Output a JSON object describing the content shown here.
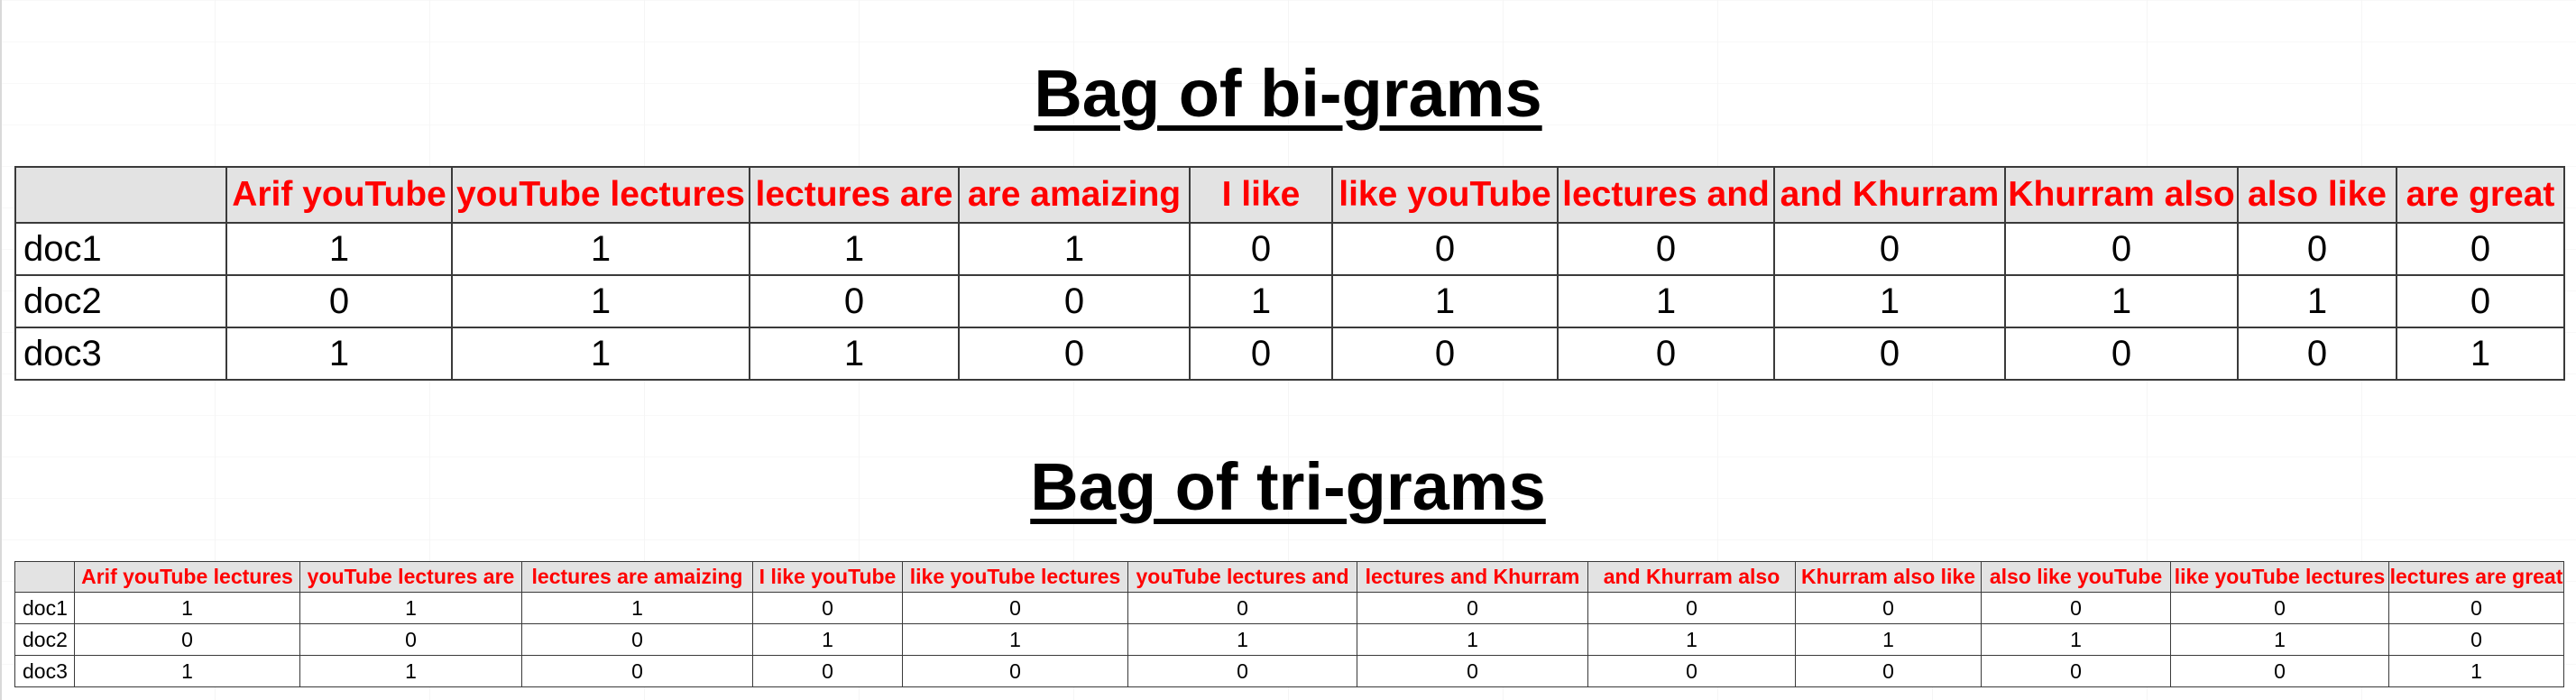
{
  "bigrams": {
    "title": "Bag of bi-grams",
    "headers": [
      "",
      "Arif youTube",
      "youTube lectures",
      "lectures are",
      "are amaizing",
      "I like",
      "like youTube",
      "lectures and",
      "and Khurram",
      "Khurram also",
      "also like",
      "are great"
    ],
    "rows": [
      {
        "doc": "doc1",
        "values": [
          "1",
          "1",
          "1",
          "1",
          "0",
          "0",
          "0",
          "0",
          "0",
          "0",
          "0"
        ]
      },
      {
        "doc": "doc2",
        "values": [
          "0",
          "1",
          "0",
          "0",
          "1",
          "1",
          "1",
          "1",
          "1",
          "1",
          "0"
        ]
      },
      {
        "doc": "doc3",
        "values": [
          "1",
          "1",
          "1",
          "0",
          "0",
          "0",
          "0",
          "0",
          "0",
          "0",
          "1"
        ]
      }
    ]
  },
  "trigrams": {
    "title": "Bag of tri-grams",
    "headers": [
      "",
      "Arif youTube lectures",
      "youTube lectures are",
      "lectures are amaizing",
      "I like youTube",
      "like youTube lectures",
      "youTube lectures and",
      "lectures and Khurram",
      "and Khurram also",
      "Khurram also like",
      "also like youTube",
      "like youTube lectures",
      "lectures are great"
    ],
    "rows": [
      {
        "doc": "doc1",
        "values": [
          "1",
          "1",
          "1",
          "0",
          "0",
          "0",
          "0",
          "0",
          "0",
          "0",
          "0",
          "0"
        ]
      },
      {
        "doc": "doc2",
        "values": [
          "0",
          "0",
          "0",
          "1",
          "1",
          "1",
          "1",
          "1",
          "1",
          "1",
          "1",
          "0"
        ]
      },
      {
        "doc": "doc3",
        "values": [
          "1",
          "1",
          "0",
          "0",
          "0",
          "0",
          "0",
          "0",
          "0",
          "0",
          "0",
          "1"
        ]
      }
    ]
  }
}
